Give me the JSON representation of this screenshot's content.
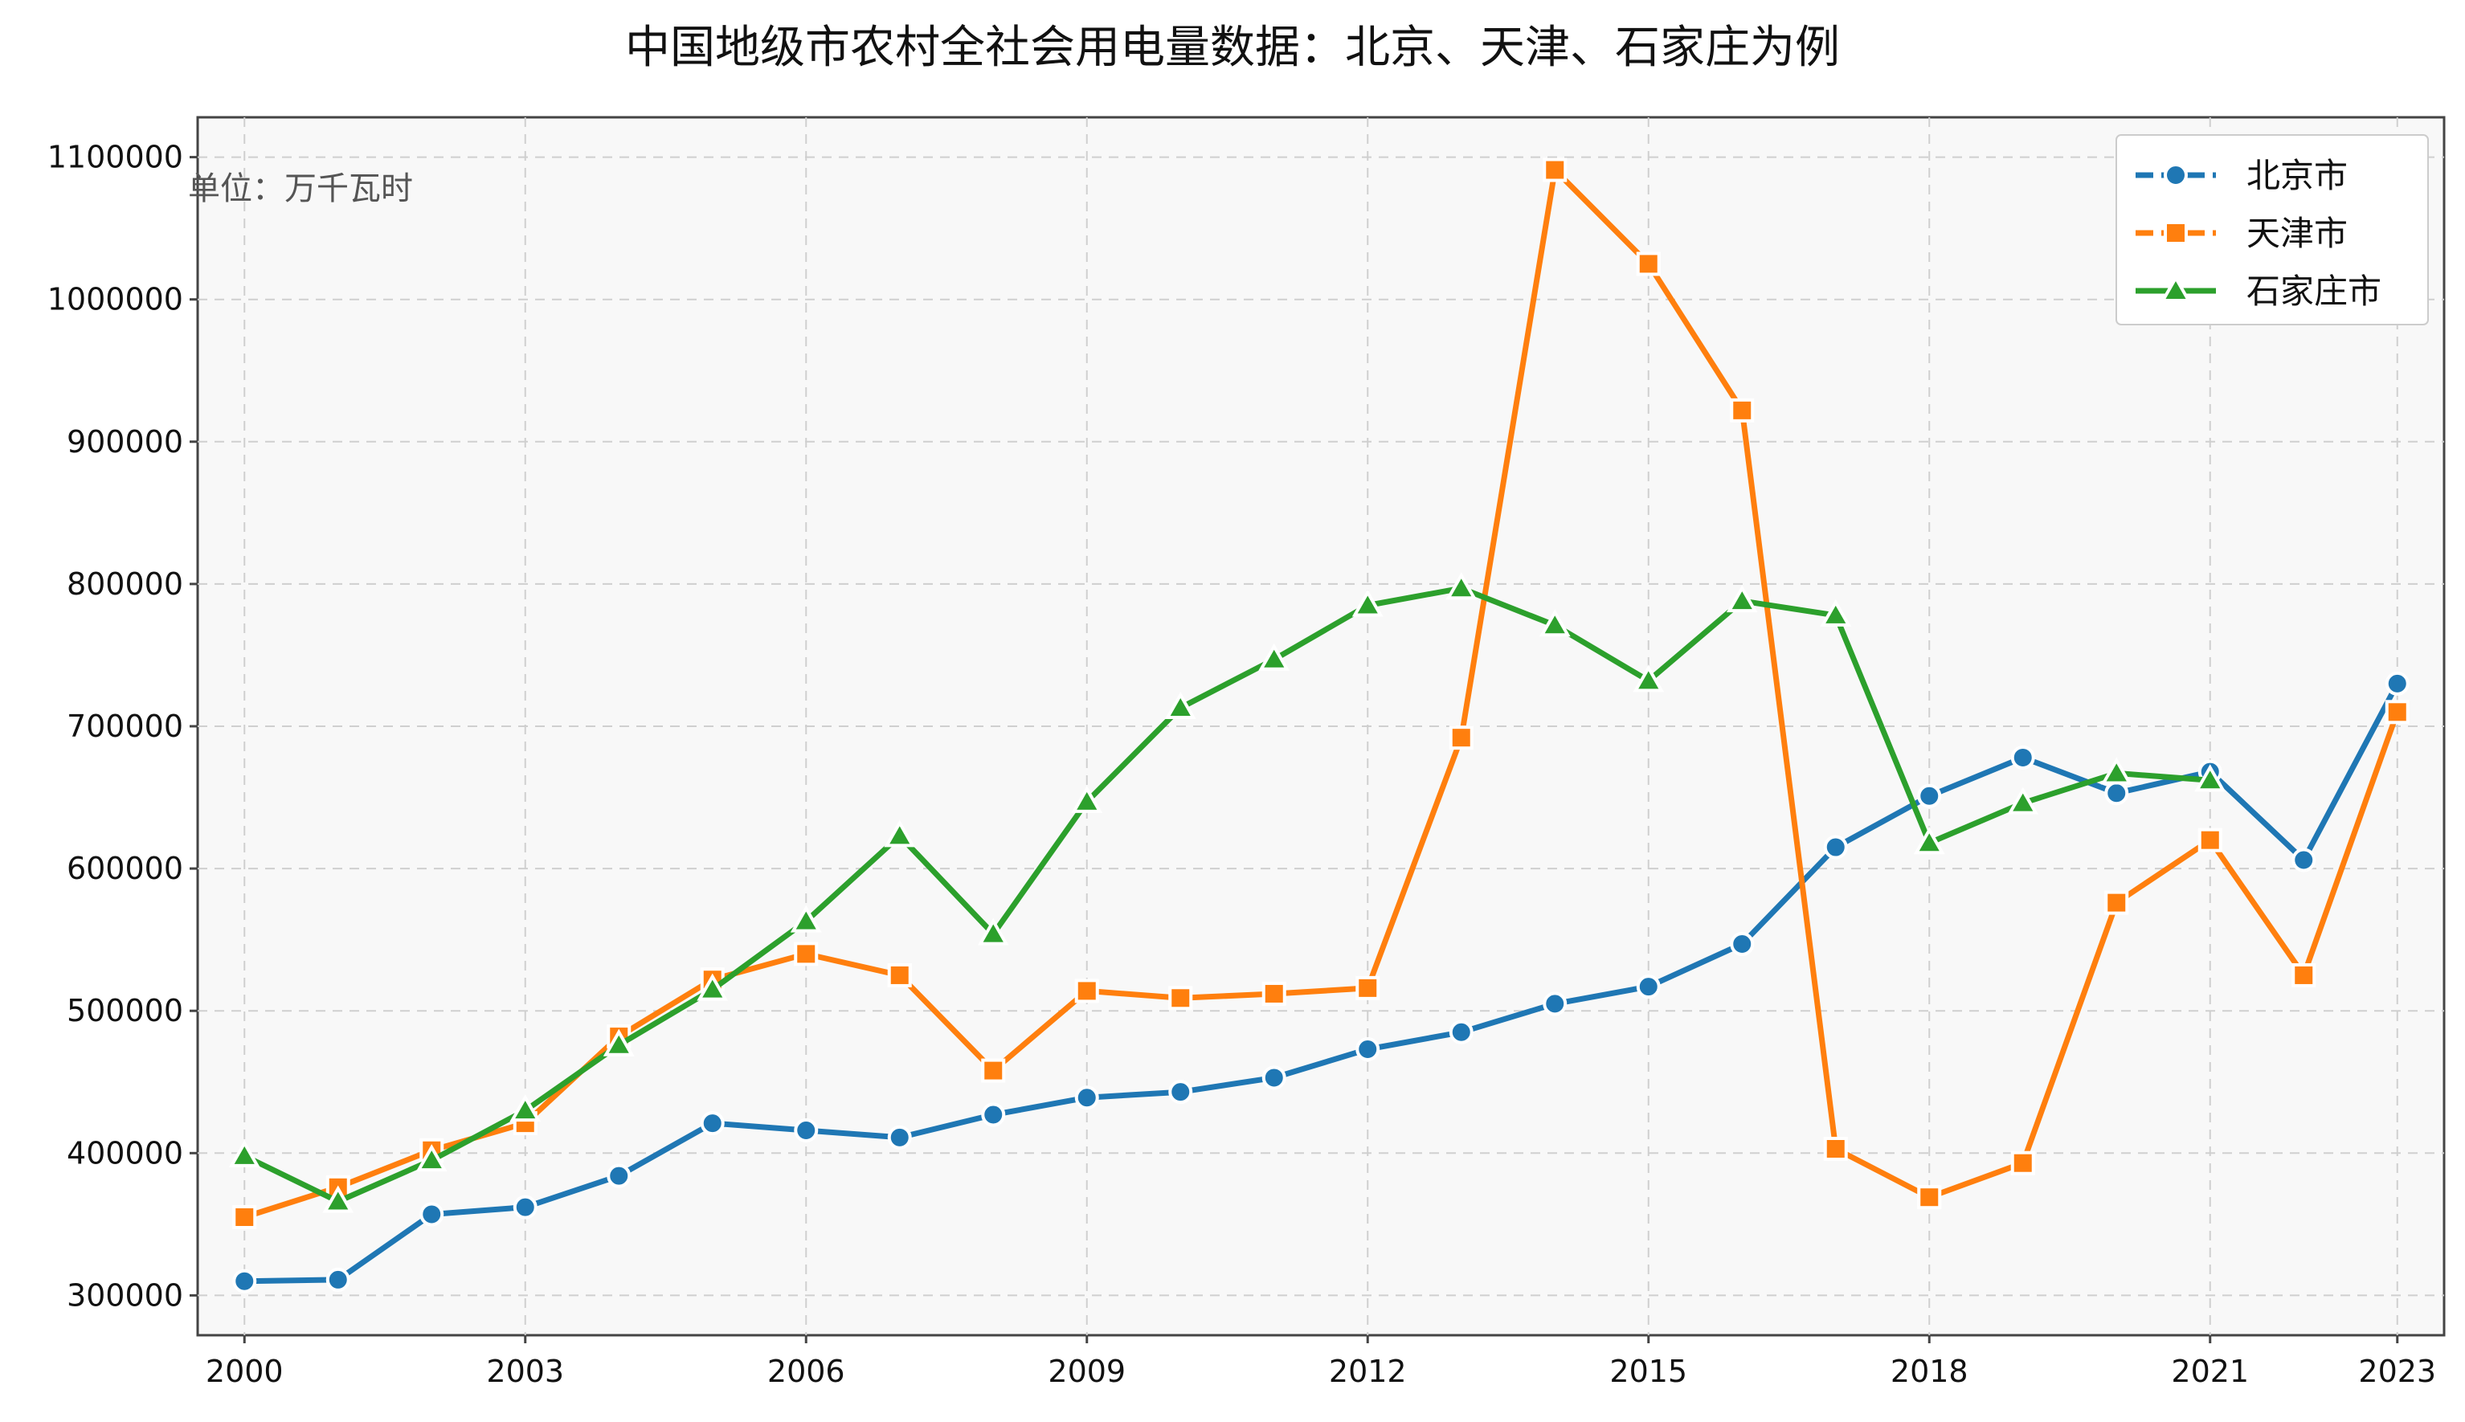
{
  "chart_data": {
    "type": "line",
    "title": "中国地级市农村全社会用电量数据：北京、天津、石家庄为例",
    "unit_label": "单位：万千瓦时",
    "xlabel": "",
    "ylabel": "",
    "x": [
      2000,
      2001,
      2002,
      2003,
      2004,
      2005,
      2006,
      2007,
      2008,
      2009,
      2010,
      2011,
      2012,
      2013,
      2014,
      2015,
      2016,
      2017,
      2018,
      2019,
      2020,
      2021,
      2022,
      2023
    ],
    "xticks": [
      2000,
      2003,
      2006,
      2009,
      2012,
      2015,
      2018,
      2021,
      2023
    ],
    "xlim": [
      1999.5,
      2023.5
    ],
    "yticks": [
      300000,
      400000,
      500000,
      600000,
      700000,
      800000,
      900000,
      1000000,
      1100000
    ],
    "ylim": [
      272000,
      1128000
    ],
    "grid": true,
    "legend_position": "top-right",
    "series": [
      {
        "name": "北京市",
        "color": "#1f77b4",
        "marker": "circle",
        "values": [
          310000,
          311000,
          357000,
          362000,
          384000,
          421000,
          416000,
          411000,
          427000,
          439000,
          443000,
          453000,
          473000,
          485000,
          505000,
          517000,
          547000,
          615000,
          651000,
          678000,
          653000,
          668000,
          606000,
          730000
        ]
      },
      {
        "name": "天津市",
        "color": "#ff7f0e",
        "marker": "square",
        "values": [
          355000,
          376000,
          402000,
          421000,
          482000,
          522000,
          540000,
          525000,
          458000,
          514000,
          509000,
          512000,
          516000,
          692000,
          1091000,
          1025000,
          922000,
          403000,
          369000,
          393000,
          576000,
          620000,
          525000,
          710000
        ]
      },
      {
        "name": "石家庄市",
        "color": "#2ca02c",
        "marker": "triangle",
        "values": [
          398000,
          366000,
          395000,
          430000,
          476000,
          515000,
          563000,
          623000,
          554000,
          647000,
          713000,
          747000,
          785000,
          797000,
          771000,
          732000,
          788000,
          778000,
          618000,
          646000,
          667000,
          662000,
          null,
          null
        ]
      }
    ]
  }
}
